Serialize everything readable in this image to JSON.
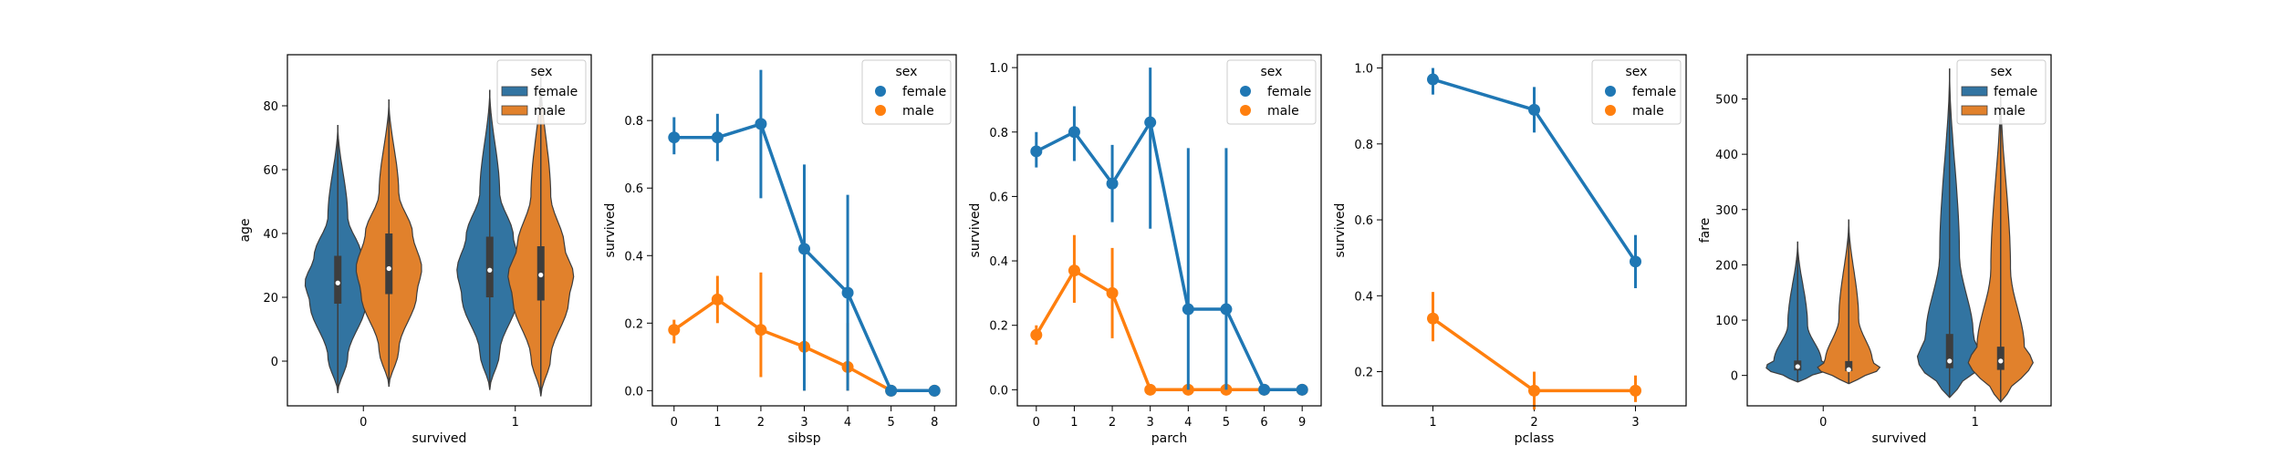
{
  "colors": {
    "female": "#1f77b4",
    "male": "#ff7f0e",
    "violin_female": "#3274a1",
    "violin_male": "#e1812c"
  },
  "chart_data": [
    {
      "type": "violin",
      "xlabel": "survived",
      "ylabel": "age",
      "categories": [
        "0",
        "1"
      ],
      "ylim": [
        -14,
        96
      ],
      "yticks": [
        0,
        20,
        40,
        60,
        80
      ],
      "legend": {
        "title": "sex",
        "entries": [
          "female",
          "male"
        ],
        "placement": "upper-right",
        "marker": "patch"
      },
      "series": [
        {
          "name": "female",
          "groups": [
            {
              "min": -10,
              "q1": 18,
              "median": 24.5,
              "q3": 33,
              "max": 74
            },
            {
              "min": -9,
              "q1": 20,
              "median": 28.5,
              "q3": 39,
              "max": 85
            }
          ]
        },
        {
          "name": "male",
          "groups": [
            {
              "min": -8,
              "q1": 21,
              "median": 29,
              "q3": 40,
              "max": 82
            },
            {
              "min": -11,
              "q1": 19,
              "median": 27,
              "q3": 36,
              "max": 89
            }
          ]
        }
      ]
    },
    {
      "type": "pointplot",
      "xlabel": "sibsp",
      "ylabel": "survived",
      "categories": [
        "0",
        "1",
        "2",
        "3",
        "4",
        "5",
        "8"
      ],
      "ylim": [
        -0.045,
        0.995
      ],
      "yticks": [
        0.0,
        0.2,
        0.4,
        0.6,
        0.8
      ],
      "legend": {
        "title": "sex",
        "entries": [
          "female",
          "male"
        ],
        "placement": "upper-right",
        "marker": "circle"
      },
      "series": [
        {
          "name": "female",
          "values": [
            0.75,
            0.75,
            0.79,
            0.42,
            0.29,
            0.0,
            0.0
          ],
          "ci": [
            [
              0.7,
              0.81
            ],
            [
              0.68,
              0.82
            ],
            [
              0.57,
              0.95
            ],
            [
              0.0,
              0.67
            ],
            [
              0.0,
              0.58
            ],
            null,
            null
          ]
        },
        {
          "name": "male",
          "values": [
            0.18,
            0.27,
            0.18,
            0.13,
            0.07,
            0.0,
            0.0
          ],
          "ci": [
            [
              0.14,
              0.21
            ],
            [
              0.2,
              0.34
            ],
            [
              0.04,
              0.35
            ],
            [
              0.0,
              0.35
            ],
            [
              0.0,
              0.2
            ],
            null,
            null
          ]
        }
      ]
    },
    {
      "type": "pointplot",
      "xlabel": "parch",
      "ylabel": "survived",
      "categories": [
        "0",
        "1",
        "2",
        "3",
        "4",
        "5",
        "6",
        "9"
      ],
      "ylim": [
        -0.05,
        1.04
      ],
      "yticks": [
        0.0,
        0.2,
        0.4,
        0.6,
        0.8,
        1.0
      ],
      "legend": {
        "title": "sex",
        "entries": [
          "female",
          "male"
        ],
        "placement": "upper-right",
        "marker": "circle"
      },
      "series": [
        {
          "name": "female",
          "values": [
            0.74,
            0.8,
            0.64,
            0.83,
            0.25,
            0.25,
            0.0,
            0.0
          ],
          "ci": [
            [
              0.69,
              0.8
            ],
            [
              0.71,
              0.88
            ],
            [
              0.52,
              0.76
            ],
            [
              0.5,
              1.0
            ],
            [
              0.0,
              0.75
            ],
            [
              0.0,
              0.75
            ],
            null,
            null
          ]
        },
        {
          "name": "male",
          "values": [
            0.17,
            0.37,
            0.3,
            0.0,
            0.0,
            0.0,
            0.0,
            0.0
          ],
          "ci": [
            [
              0.14,
              0.2
            ],
            [
              0.27,
              0.48
            ],
            [
              0.16,
              0.44
            ],
            null,
            null,
            null,
            null,
            null
          ]
        }
      ]
    },
    {
      "type": "pointplot",
      "xlabel": "pclass",
      "ylabel": "survived",
      "categories": [
        "1",
        "2",
        "3"
      ],
      "ylim": [
        0.11,
        1.035
      ],
      "yticks": [
        0.2,
        0.4,
        0.6,
        0.8,
        1.0
      ],
      "legend": {
        "title": "sex",
        "entries": [
          "female",
          "male"
        ],
        "placement": "upper-right",
        "marker": "circle"
      },
      "series": [
        {
          "name": "female",
          "values": [
            0.97,
            0.89,
            0.49
          ],
          "ci": [
            [
              0.93,
              1.0
            ],
            [
              0.83,
              0.95
            ],
            [
              0.42,
              0.56
            ]
          ]
        },
        {
          "name": "male",
          "values": [
            0.34,
            0.15,
            0.15
          ],
          "ci": [
            [
              0.28,
              0.41
            ],
            [
              0.1,
              0.2
            ],
            [
              0.12,
              0.19
            ]
          ]
        }
      ]
    },
    {
      "type": "violin",
      "xlabel": "survived",
      "ylabel": "fare",
      "categories": [
        "0",
        "1"
      ],
      "ylim": [
        -55,
        580
      ],
      "yticks": [
        0,
        100,
        200,
        300,
        400,
        500
      ],
      "legend": {
        "title": "sex",
        "entries": [
          "female",
          "male"
        ],
        "placement": "upper-right",
        "marker": "patch"
      },
      "series": [
        {
          "name": "female",
          "groups": [
            {
              "min": -12,
              "q1": 9,
              "median": 16,
              "q3": 27,
              "max": 242
            },
            {
              "min": -40,
              "q1": 13,
              "median": 26,
              "q3": 75,
              "max": 555
            }
          ]
        },
        {
          "name": "male",
          "groups": [
            {
              "min": -15,
              "q1": 8,
              "median": 10.5,
              "q3": 26,
              "max": 282
            },
            {
              "min": -48,
              "q1": 10,
              "median": 26,
              "q3": 52,
              "max": 520
            }
          ]
        }
      ]
    }
  ]
}
